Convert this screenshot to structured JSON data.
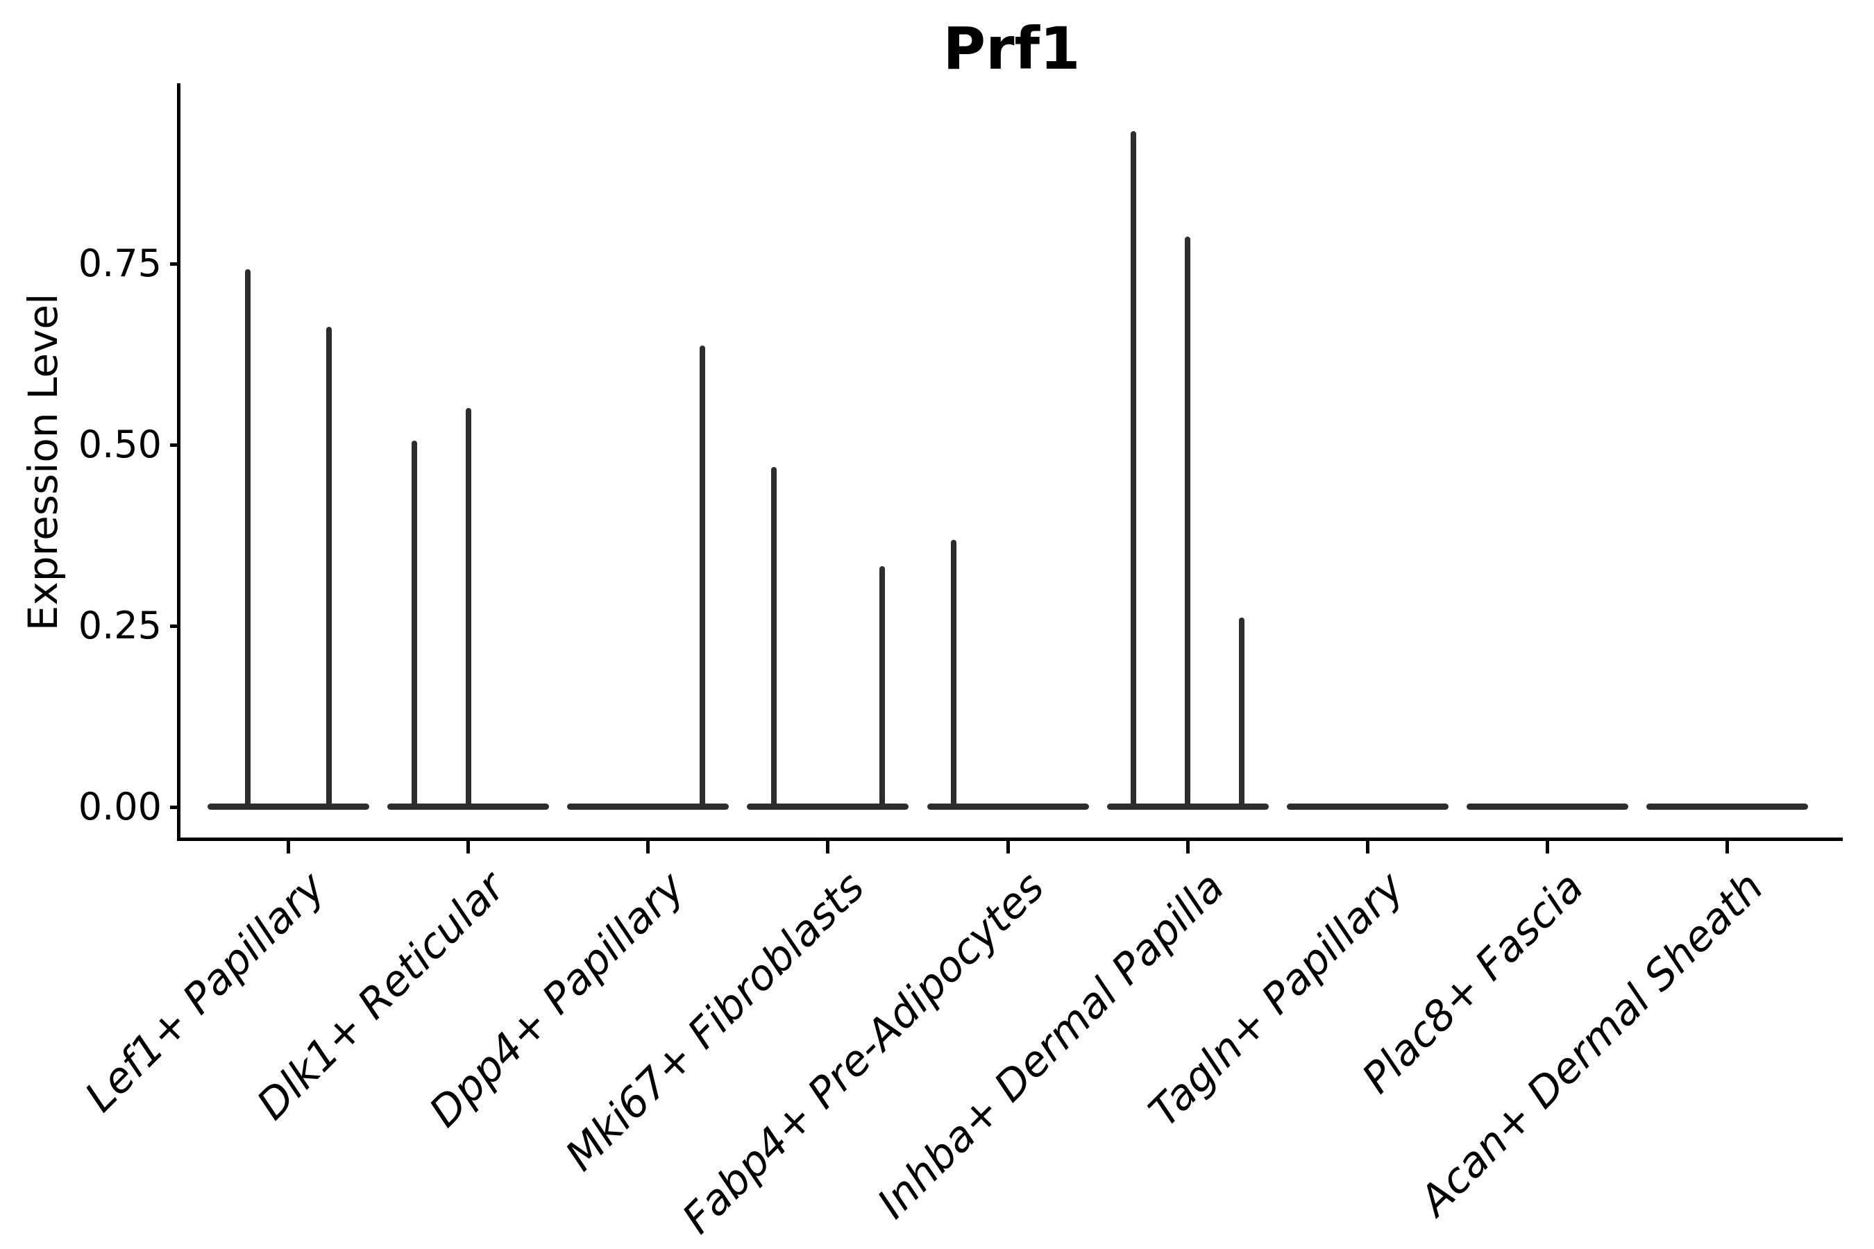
{
  "chart_data": {
    "type": "violin",
    "title": "Prf1",
    "ylabel": "Expression Level",
    "xlabel": "",
    "legend": "none",
    "grid": false,
    "background": "#ffffff",
    "colors": {
      "violin": "#2d2d2d",
      "axis": "#000000",
      "text": "#000000"
    },
    "y_axis": {
      "range": [
        -0.04,
        1.0
      ],
      "ticks": [
        {
          "label": "0.00",
          "value": 0.0
        },
        {
          "label": "0.25",
          "value": 0.25
        },
        {
          "label": "0.50",
          "value": 0.5
        },
        {
          "label": "0.75",
          "value": 0.75
        }
      ]
    },
    "x_axis": {
      "tick_label_angle_deg": 45
    },
    "categories": [
      {
        "name": "Lef1+ Papillary",
        "violins": [
          {
            "offset": -0.225,
            "max": 0.741
          },
          {
            "offset": 0.225,
            "max": 0.662
          }
        ]
      },
      {
        "name": "Dlk1+ Reticular",
        "violins": [
          {
            "offset": -0.3,
            "max": 0.505
          },
          {
            "offset": 0,
            "max": 0.55
          },
          {
            "offset": 0.3,
            "max": 0
          }
        ]
      },
      {
        "name": "Dpp4+ Papillary",
        "violins": [
          {
            "offset": -0.3,
            "max": 0
          },
          {
            "offset": 0,
            "max": 0
          },
          {
            "offset": 0.3,
            "max": 0.636
          }
        ]
      },
      {
        "name": "Mki67+ Fibroblasts",
        "violins": [
          {
            "offset": -0.3,
            "max": 0.468
          },
          {
            "offset": 0,
            "max": 0
          },
          {
            "offset": 0.3,
            "max": 0.331
          }
        ]
      },
      {
        "name": "Fabp4+ Pre-Adipocytes",
        "violins": [
          {
            "offset": -0.3,
            "max": 0.368
          },
          {
            "offset": 0,
            "max": 0
          },
          {
            "offset": 0.3,
            "max": 0
          }
        ]
      },
      {
        "name": "Inhba+ Dermal Papilla",
        "violins": [
          {
            "offset": -0.3,
            "max": 0.932
          },
          {
            "offset": 0,
            "max": 0.786
          },
          {
            "offset": 0.3,
            "max": 0.261
          }
        ]
      },
      {
        "name": "Tagln+ Papillary",
        "violins": [
          {
            "offset": -0.3,
            "max": 0
          },
          {
            "offset": 0,
            "max": 0
          },
          {
            "offset": 0.3,
            "max": 0
          }
        ]
      },
      {
        "name": "Plac8+ Fascia",
        "violins": [
          {
            "offset": -0.3,
            "max": 0
          },
          {
            "offset": 0,
            "max": 0
          },
          {
            "offset": 0.3,
            "max": 0
          }
        ]
      },
      {
        "name": "Acan+ Dermal Sheath",
        "violins": [
          {
            "offset": -0.3,
            "max": 0
          },
          {
            "offset": 0,
            "max": 0
          },
          {
            "offset": 0.3,
            "max": 0
          }
        ]
      }
    ]
  }
}
